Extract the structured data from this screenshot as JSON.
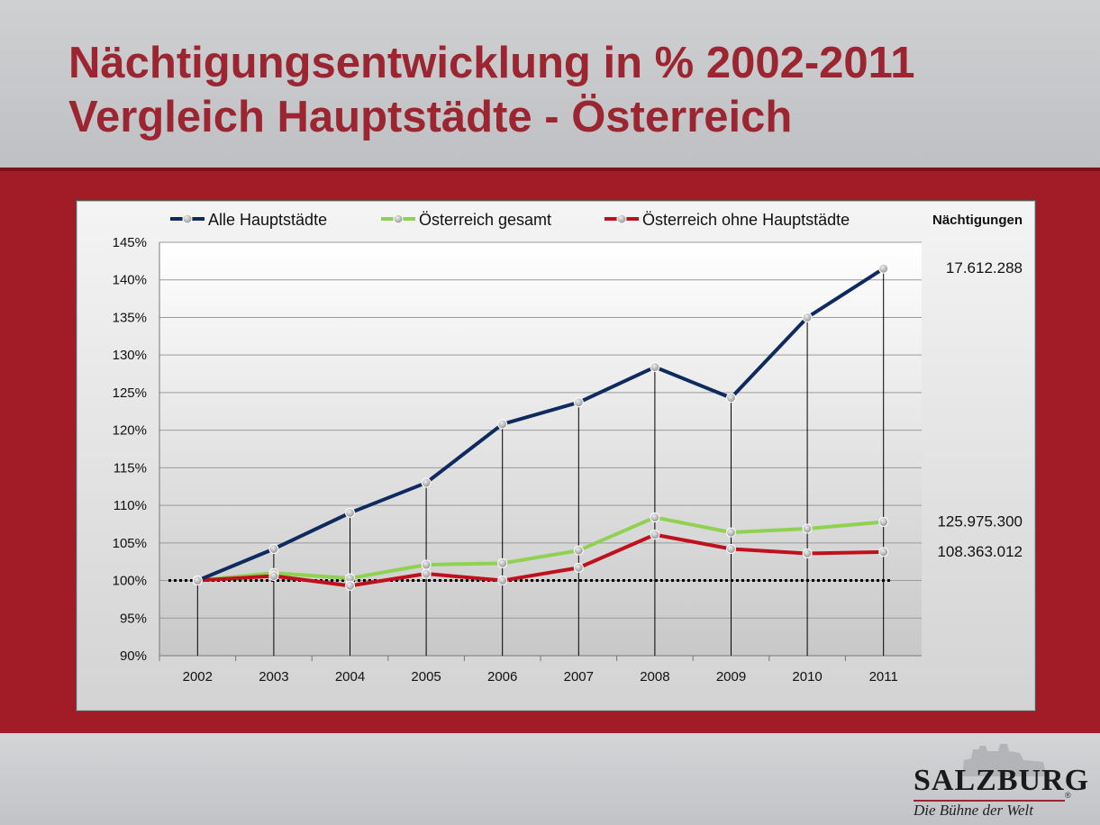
{
  "slide": {
    "title_line1": "Nächtigungsentwicklung in % 2002-2011",
    "title_line2": "Vergleich Hauptstädte - Österreich"
  },
  "logo": {
    "word": "SALZBURG",
    "tagline": "Die Bühne der Welt",
    "reg": "®"
  },
  "colors": {
    "title": "#9b2530",
    "band": "#a11c26"
  },
  "chart_data": {
    "type": "line",
    "title": "",
    "xlabel": "",
    "ylabel": "",
    "categories": [
      "2002",
      "2003",
      "2004",
      "2005",
      "2006",
      "2007",
      "2008",
      "2009",
      "2010",
      "2011"
    ],
    "ylim": [
      90,
      145
    ],
    "yticks": [
      90,
      95,
      100,
      105,
      110,
      115,
      120,
      125,
      130,
      135,
      140,
      145
    ],
    "ytick_suffix": "%",
    "grid": true,
    "legend_position": "top",
    "reference_line": {
      "value": 100,
      "style": "dotted",
      "color": "#000000"
    },
    "series": [
      {
        "name": "Alle Hauptstädte",
        "color": "#0f2a5e",
        "values": [
          100,
          104.2,
          109,
          113,
          120.8,
          123.7,
          128.4,
          124.3,
          135,
          141.5
        ]
      },
      {
        "name": "Österreich gesamt",
        "color": "#8fd150",
        "values": [
          100,
          101,
          100.3,
          102.1,
          102.3,
          104,
          108.4,
          106.4,
          106.9,
          107.8
        ]
      },
      {
        "name": "Österreich ohne Hauptstädte",
        "color": "#c0101d",
        "values": [
          100,
          100.6,
          99.3,
          100.9,
          100,
          101.7,
          106.1,
          104.2,
          103.6,
          103.8
        ]
      }
    ],
    "side_header": "Nächtigungen",
    "side_labels": [
      {
        "series": 0,
        "text": "17.612.288"
      },
      {
        "series": 1,
        "text": "125.975.300"
      },
      {
        "series": 2,
        "text": "108.363.012"
      }
    ]
  }
}
